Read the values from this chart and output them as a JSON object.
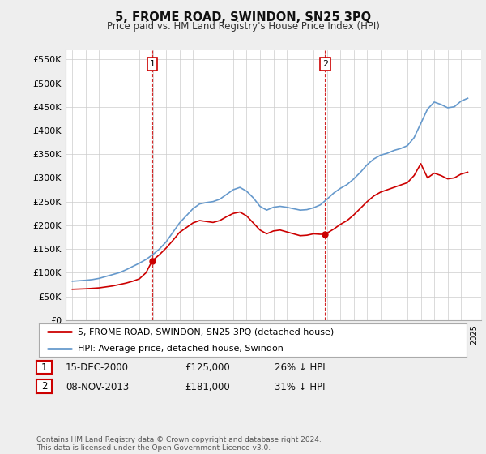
{
  "title": "5, FROME ROAD, SWINDON, SN25 3PQ",
  "subtitle": "Price paid vs. HM Land Registry's House Price Index (HPI)",
  "legend_line1": "5, FROME ROAD, SWINDON, SN25 3PQ (detached house)",
  "legend_line2": "HPI: Average price, detached house, Swindon",
  "table_row1": [
    "1",
    "15-DEC-2000",
    "£125,000",
    "26% ↓ HPI"
  ],
  "table_row2": [
    "2",
    "08-NOV-2013",
    "£181,000",
    "31% ↓ HPI"
  ],
  "footnote": "Contains HM Land Registry data © Crown copyright and database right 2024.\nThis data is licensed under the Open Government Licence v3.0.",
  "ylabel_ticks": [
    0,
    50000,
    100000,
    150000,
    200000,
    250000,
    300000,
    350000,
    400000,
    450000,
    500000,
    550000
  ],
  "red_color": "#cc0000",
  "blue_color": "#6699cc",
  "marker1_year": 2000.96,
  "marker2_year": 2013.86,
  "marker1_red_value": 125000,
  "marker2_red_value": 181000,
  "vline_color": "#cc0000",
  "background_color": "#eeeeee",
  "plot_bg_color": "#ffffff",
  "grid_color": "#cccccc",
  "hpi_years": [
    1995.0,
    1995.5,
    1996.0,
    1996.5,
    1997.0,
    1997.5,
    1998.0,
    1998.5,
    1999.0,
    1999.5,
    2000.0,
    2000.5,
    2001.0,
    2001.5,
    2002.0,
    2002.5,
    2003.0,
    2003.5,
    2004.0,
    2004.5,
    2005.0,
    2005.5,
    2006.0,
    2006.5,
    2007.0,
    2007.5,
    2008.0,
    2008.5,
    2009.0,
    2009.5,
    2010.0,
    2010.5,
    2011.0,
    2011.5,
    2012.0,
    2012.5,
    2013.0,
    2013.5,
    2014.0,
    2014.5,
    2015.0,
    2015.5,
    2016.0,
    2016.5,
    2017.0,
    2017.5,
    2018.0,
    2018.5,
    2019.0,
    2019.5,
    2020.0,
    2020.5,
    2021.0,
    2021.5,
    2022.0,
    2022.5,
    2023.0,
    2023.5,
    2024.0,
    2024.5
  ],
  "hpi_values": [
    82000,
    83000,
    84000,
    85500,
    88000,
    92000,
    96000,
    100000,
    106000,
    113000,
    120000,
    128000,
    138000,
    150000,
    165000,
    185000,
    205000,
    220000,
    235000,
    245000,
    248000,
    250000,
    255000,
    265000,
    275000,
    280000,
    272000,
    258000,
    240000,
    232000,
    238000,
    240000,
    238000,
    235000,
    232000,
    233000,
    237000,
    243000,
    255000,
    268000,
    278000,
    286000,
    298000,
    312000,
    328000,
    340000,
    348000,
    352000,
    358000,
    362000,
    368000,
    385000,
    415000,
    445000,
    460000,
    455000,
    448000,
    450000,
    462000,
    468000
  ],
  "red_years": [
    1995.0,
    1995.5,
    1996.0,
    1996.5,
    1997.0,
    1997.5,
    1998.0,
    1998.5,
    1999.0,
    1999.5,
    2000.0,
    2000.5,
    2000.96,
    2001.5,
    2002.0,
    2002.5,
    2003.0,
    2003.5,
    2004.0,
    2004.5,
    2005.0,
    2005.5,
    2006.0,
    2006.5,
    2007.0,
    2007.5,
    2008.0,
    2008.5,
    2009.0,
    2009.5,
    2010.0,
    2010.5,
    2011.0,
    2011.5,
    2012.0,
    2012.5,
    2013.0,
    2013.5,
    2013.86,
    2014.5,
    2015.0,
    2015.5,
    2016.0,
    2016.5,
    2017.0,
    2017.5,
    2018.0,
    2018.5,
    2019.0,
    2019.5,
    2020.0,
    2020.5,
    2021.0,
    2021.5,
    2022.0,
    2022.5,
    2023.0,
    2023.5,
    2024.0,
    2024.5
  ],
  "red_values": [
    65000,
    65500,
    66000,
    67000,
    68000,
    70000,
    72000,
    75000,
    78000,
    82000,
    87000,
    100000,
    125000,
    138000,
    152000,
    168000,
    185000,
    195000,
    205000,
    210000,
    208000,
    206000,
    210000,
    218000,
    225000,
    228000,
    220000,
    205000,
    190000,
    182000,
    188000,
    190000,
    186000,
    182000,
    178000,
    179000,
    182000,
    181000,
    181000,
    192000,
    202000,
    210000,
    222000,
    236000,
    250000,
    262000,
    270000,
    275000,
    280000,
    285000,
    290000,
    305000,
    330000,
    300000,
    310000,
    305000,
    298000,
    300000,
    308000,
    312000
  ]
}
